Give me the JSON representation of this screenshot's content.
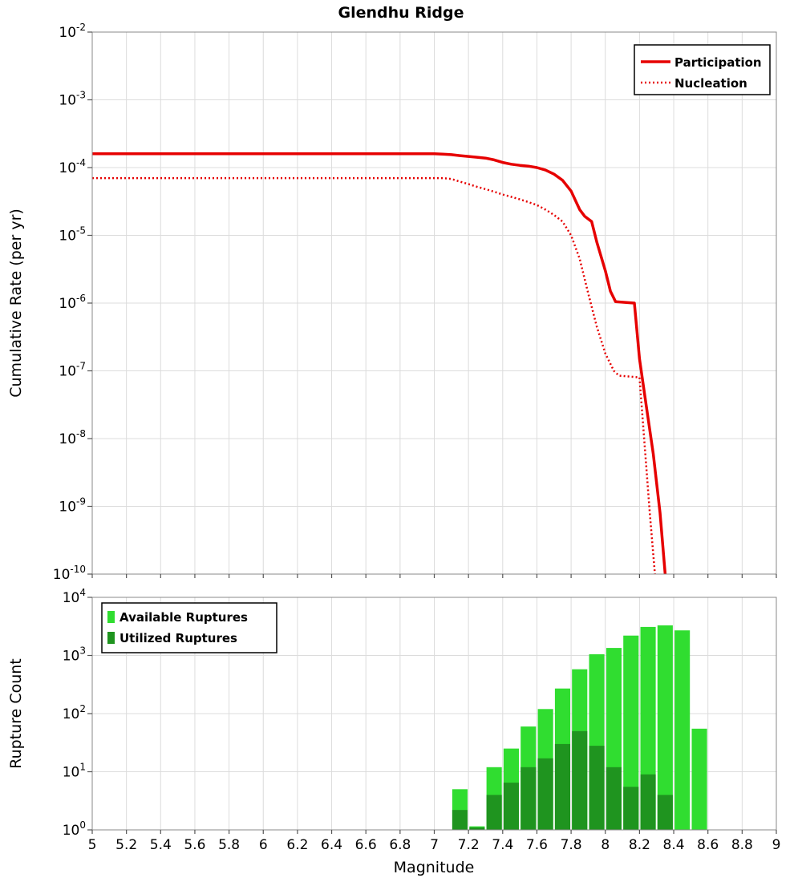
{
  "page": {
    "background": "#ffffff",
    "grid_color": "#dcdcdc",
    "border_color": "#888888",
    "tick_color": "#555555"
  },
  "chart_data": [
    {
      "type": "line",
      "title": "Glendhu Ridge",
      "xlabel": "Magnitude",
      "ylabel": "Cumulative Rate (per yr)",
      "xlim": [
        5,
        9
      ],
      "x_ticks": [
        5,
        5.2,
        5.4,
        5.6,
        5.8,
        6,
        6.2,
        6.4,
        6.6,
        6.8,
        7,
        7.2,
        7.4,
        7.6,
        7.8,
        8,
        8.2,
        8.4,
        8.6,
        8.8,
        9
      ],
      "y_scale": "log",
      "y_exp_range": [
        -10,
        -2
      ],
      "y_tick_exponents": [
        -2,
        -3,
        -4,
        -5,
        -6,
        -7,
        -8,
        -9,
        -10
      ],
      "grid": true,
      "legend_position": "top-right",
      "series": [
        {
          "name": "Participation",
          "color": "#e60000",
          "line_style": "solid",
          "line_width": 3.5,
          "points": [
            [
              5.0,
              0.00016
            ],
            [
              6.0,
              0.00016
            ],
            [
              7.0,
              0.00016
            ],
            [
              7.05,
              0.000158
            ],
            [
              7.1,
              0.000155
            ],
            [
              7.15,
              0.00015
            ],
            [
              7.2,
              0.000146
            ],
            [
              7.25,
              0.000142
            ],
            [
              7.3,
              0.000138
            ],
            [
              7.35,
              0.00013
            ],
            [
              7.4,
              0.000119
            ],
            [
              7.45,
              0.000112
            ],
            [
              7.5,
              0.000108
            ],
            [
              7.55,
              0.000105
            ],
            [
              7.6,
              0.0001
            ],
            [
              7.65,
              9.2e-05
            ],
            [
              7.7,
              8e-05
            ],
            [
              7.75,
              6.5e-05
            ],
            [
              7.8,
              4.5e-05
            ],
            [
              7.85,
              2.4e-05
            ],
            [
              7.88,
              1.9e-05
            ],
            [
              7.92,
              1.6e-05
            ],
            [
              7.95,
              8e-06
            ],
            [
              8.0,
              3e-06
            ],
            [
              8.03,
              1.5e-06
            ],
            [
              8.06,
              1.05e-06
            ],
            [
              8.17,
              1e-06
            ],
            [
              8.2,
              1.5e-07
            ],
            [
              8.24,
              3e-08
            ],
            [
              8.28,
              6e-09
            ],
            [
              8.32,
              8e-10
            ],
            [
              8.35,
              1e-10
            ],
            [
              8.36,
              4e-11
            ]
          ]
        },
        {
          "name": "Nucleation",
          "color": "#e60000",
          "line_style": "dotted",
          "line_width": 2.5,
          "points": [
            [
              5.0,
              7e-05
            ],
            [
              6.0,
              7e-05
            ],
            [
              7.0,
              7e-05
            ],
            [
              7.05,
              7e-05
            ],
            [
              7.1,
              6.8e-05
            ],
            [
              7.15,
              6.2e-05
            ],
            [
              7.2,
              5.7e-05
            ],
            [
              7.25,
              5.2e-05
            ],
            [
              7.3,
              4.8e-05
            ],
            [
              7.35,
              4.4e-05
            ],
            [
              7.4,
              4e-05
            ],
            [
              7.45,
              3.7e-05
            ],
            [
              7.5,
              3.4e-05
            ],
            [
              7.55,
              3.1e-05
            ],
            [
              7.6,
              2.8e-05
            ],
            [
              7.65,
              2.4e-05
            ],
            [
              7.7,
              2e-05
            ],
            [
              7.75,
              1.6e-05
            ],
            [
              7.8,
              1e-05
            ],
            [
              7.85,
              4.5e-06
            ],
            [
              7.9,
              1.4e-06
            ],
            [
              7.95,
              4.5e-07
            ],
            [
              8.0,
              1.8e-07
            ],
            [
              8.05,
              1e-07
            ],
            [
              8.08,
              8.5e-08
            ],
            [
              8.2,
              8e-08
            ],
            [
              8.23,
              8e-09
            ],
            [
              8.26,
              8e-10
            ],
            [
              8.29,
              1e-10
            ],
            [
              8.3,
              4e-11
            ]
          ]
        }
      ]
    },
    {
      "type": "bar",
      "title": "",
      "xlabel": "Magnitude",
      "ylabel": "Rupture Count",
      "xlim": [
        5,
        9
      ],
      "x_ticks": [
        5,
        5.2,
        5.4,
        5.6,
        5.8,
        6,
        6.2,
        6.4,
        6.6,
        6.8,
        7,
        7.2,
        7.4,
        7.6,
        7.8,
        8,
        8.2,
        8.4,
        8.6,
        8.8,
        9
      ],
      "y_scale": "log",
      "y_exp_range": [
        0,
        4
      ],
      "y_tick_exponents": [
        0,
        1,
        2,
        3,
        4
      ],
      "bar_width": 0.1,
      "grid": true,
      "legend_position": "top-left",
      "categories": [
        7.15,
        7.25,
        7.35,
        7.45,
        7.55,
        7.65,
        7.75,
        7.85,
        7.95,
        8.05,
        8.15,
        8.25,
        8.35,
        8.45,
        8.55
      ],
      "series": [
        {
          "name": "Available Ruptures",
          "color": "#30dd30",
          "values": [
            5,
            1.15,
            12,
            25,
            60,
            120,
            270,
            580,
            1050,
            1350,
            2200,
            3100,
            3300,
            2700,
            55
          ]
        },
        {
          "name": "Utilized Ruptures",
          "color": "#1f941f",
          "values": [
            2.2,
            1.1,
            4,
            6.5,
            12,
            17,
            30,
            50,
            28,
            12,
            5.5,
            9,
            4,
            0,
            0
          ]
        }
      ]
    }
  ]
}
